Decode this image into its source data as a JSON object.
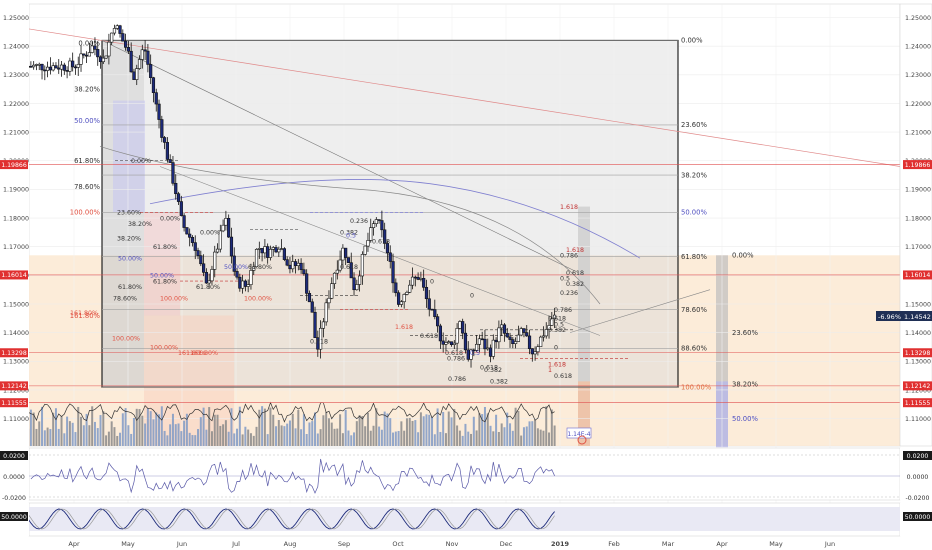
{
  "chart_data": {
    "type": "candlestick",
    "title": "",
    "xlabel": "",
    "ylabel": "",
    "ylim": [
      1.0985,
      1.2565
    ],
    "y_ticks": [
      "1.25000",
      "1.24000",
      "1.23000",
      "1.22000",
      "1.21000",
      "1.20000",
      "1.19000",
      "1.18000",
      "1.17000",
      "1.16000",
      "1.15000",
      "1.14000",
      "1.13000",
      "1.12000",
      "1.11000"
    ],
    "x_ticks": [
      "Apr",
      "May",
      "Jun",
      "Jul",
      "Aug",
      "Sep",
      "Oct",
      "Nov",
      "Dec",
      "2019",
      "Feb",
      "Mar",
      "Apr",
      "May",
      "Jun"
    ],
    "price_anchors": [
      {
        "month": 0.0,
        "price": 1.233
      },
      {
        "month": 0.35,
        "price": 1.24
      },
      {
        "month": 0.55,
        "price": 1.235
      },
      {
        "month": 0.75,
        "price": 1.248
      },
      {
        "month": 1.0,
        "price": 1.238
      },
      {
        "month": 1.1,
        "price": 1.229
      },
      {
        "month": 1.3,
        "price": 1.24
      },
      {
        "month": 1.6,
        "price": 1.212
      },
      {
        "month": 1.9,
        "price": 1.188
      },
      {
        "month": 2.0,
        "price": 1.178
      },
      {
        "month": 2.25,
        "price": 1.17
      },
      {
        "month": 2.45,
        "price": 1.156
      },
      {
        "month": 2.6,
        "price": 1.166
      },
      {
        "month": 2.8,
        "price": 1.18
      },
      {
        "month": 3.0,
        "price": 1.158
      },
      {
        "month": 3.2,
        "price": 1.156
      },
      {
        "month": 3.4,
        "price": 1.17
      },
      {
        "month": 3.6,
        "price": 1.168
      },
      {
        "month": 3.8,
        "price": 1.171
      },
      {
        "month": 4.0,
        "price": 1.163
      },
      {
        "month": 4.2,
        "price": 1.164
      },
      {
        "month": 4.4,
        "price": 1.148
      },
      {
        "month": 4.5,
        "price": 1.133
      },
      {
        "month": 4.6,
        "price": 1.143
      },
      {
        "month": 4.8,
        "price": 1.16
      },
      {
        "month": 5.0,
        "price": 1.17
      },
      {
        "month": 5.2,
        "price": 1.155
      },
      {
        "month": 5.4,
        "price": 1.17
      },
      {
        "month": 5.6,
        "price": 1.18
      },
      {
        "month": 5.75,
        "price": 1.172
      },
      {
        "month": 5.9,
        "price": 1.16
      },
      {
        "month": 6.0,
        "price": 1.15
      },
      {
        "month": 6.2,
        "price": 1.157
      },
      {
        "month": 6.4,
        "price": 1.16
      },
      {
        "month": 6.55,
        "price": 1.15
      },
      {
        "month": 6.8,
        "price": 1.138
      },
      {
        "month": 7.0,
        "price": 1.135
      },
      {
        "month": 7.15,
        "price": 1.145
      },
      {
        "month": 7.3,
        "price": 1.13
      },
      {
        "month": 7.5,
        "price": 1.138
      },
      {
        "month": 7.7,
        "price": 1.133
      },
      {
        "month": 7.9,
        "price": 1.142
      },
      {
        "month": 8.1,
        "price": 1.135
      },
      {
        "month": 8.3,
        "price": 1.14
      },
      {
        "month": 8.5,
        "price": 1.133
      },
      {
        "month": 8.7,
        "price": 1.14
      },
      {
        "month": 8.9,
        "price": 1.1454
      }
    ],
    "current_price": {
      "label": "1.14542",
      "change": "-6.96%"
    },
    "price_markers": [
      {
        "label": "1.19866",
        "price": 1.19866
      },
      {
        "label": "1.16014",
        "price": 1.16014
      },
      {
        "label": "1.13298",
        "price": 1.13298
      },
      {
        "label": "1.12142",
        "price": 1.12142
      },
      {
        "label": "1.11555",
        "price": 1.11555
      }
    ],
    "fib_main": [
      {
        "label": "0.00%",
        "price": 1.242
      },
      {
        "label": "23.60%",
        "price": 1.2125
      },
      {
        "label": "38.20%",
        "price": 1.195
      },
      {
        "label": "50.00%",
        "price": 1.182
      },
      {
        "label": "61.80%",
        "price": 1.1665
      },
      {
        "label": "78.60%",
        "price": 1.148
      },
      {
        "label": "88.60%",
        "price": 1.1345
      },
      {
        "label": "100.00%",
        "price": 1.121
      }
    ],
    "fib_side": [
      {
        "label": "0.00%",
        "price": 1.167
      },
      {
        "label": "23.60%",
        "price": 1.14
      },
      {
        "label": "38.20%",
        "price": 1.122
      },
      {
        "label": "50.00%",
        "price": 1.11
      }
    ],
    "fib_left": [
      {
        "label": "0.00%",
        "price": 1.241
      },
      {
        "label": "38.20%",
        "price": 1.225
      },
      {
        "label": "50.00%",
        "price": 1.214
      },
      {
        "label": "61.80%",
        "price": 1.2
      },
      {
        "label": "78.60%",
        "price": 1.191
      },
      {
        "label": "100.00%",
        "price": 1.182
      },
      {
        "label": "161.80%",
        "price": 1.146
      }
    ],
    "fib_ext_right": [
      "1.618",
      "1.618",
      "0.786",
      "0.618",
      "0.5",
      "0.382",
      "0.236",
      "0.786",
      "0.618",
      "0.5",
      "0.382",
      "0.618",
      "1.618",
      "0",
      "1"
    ],
    "fib_small_labels": [
      "23.60%",
      "0.00%",
      "38.20%",
      "0.00%",
      "50.00%",
      "38.20%",
      "61.80%",
      "50.00%",
      "61.80%",
      "78.60%",
      "61.80%",
      "61.80%",
      "100.00%",
      "50.00%",
      "161.80%",
      "0.00%",
      "61.80%",
      "100.00%",
      "0.382",
      "0.618",
      "0.236",
      "0.5",
      "0.618",
      "0",
      "0",
      "0.618",
      "0.618",
      "0.5",
      "0.382",
      "1.618",
      "100.00%",
      "100.00%",
      "0.786",
      "0.618",
      "0.382",
      "0.786",
      "161.80%",
      "161.80%",
      "0.618"
    ],
    "indicator1": {
      "top_label": "0.0200",
      "zero_label": "0.0000",
      "bottom_label": "-0.0200"
    },
    "indicator2": {
      "label": "50.0000"
    },
    "chart_marker": {
      "label": "1.14E-4"
    }
  }
}
